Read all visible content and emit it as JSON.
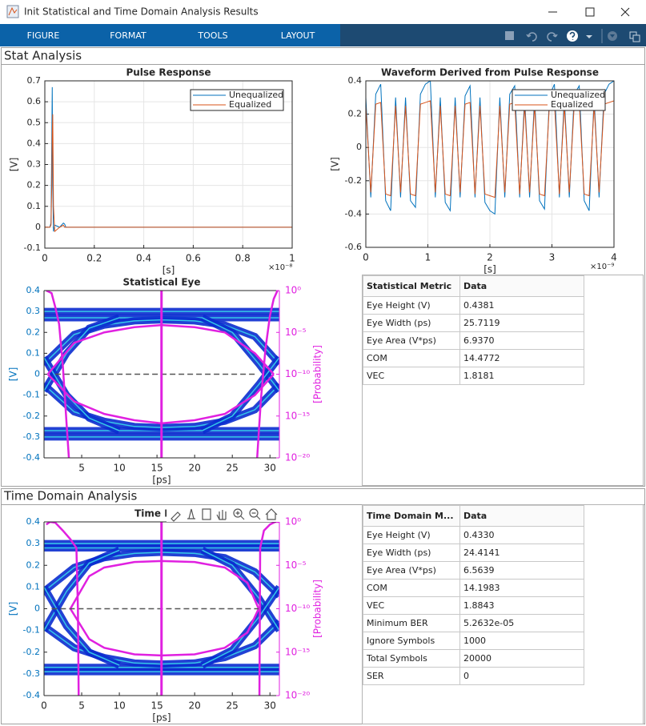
{
  "window": {
    "title": "Init Statistical and Time Domain Analysis Results"
  },
  "toolbar": {
    "menu": [
      "FIGURE",
      "FORMAT",
      "TOOLS",
      "LAYOUT"
    ]
  },
  "stat_panel": {
    "title": "Stat Analysis",
    "table": {
      "header": [
        "Statistical Metric",
        "Data"
      ],
      "rows": [
        [
          "Eye Height (V)",
          "0.4381"
        ],
        [
          "Eye Width (ps)",
          "25.7119"
        ],
        [
          "Eye Area (V*ps)",
          "6.9370"
        ],
        [
          "COM",
          "14.4772"
        ],
        [
          "VEC",
          "1.8181"
        ]
      ]
    }
  },
  "time_panel": {
    "title": "Time Domain Analysis",
    "table": {
      "header": [
        "Time Domain M...",
        "Data"
      ],
      "rows": [
        [
          "Eye Height (V)",
          "0.4330"
        ],
        [
          "Eye Width (ps)",
          "24.4141"
        ],
        [
          "Eye Area (V*ps)",
          "6.5639"
        ],
        [
          "COM",
          "14.1983"
        ],
        [
          "VEC",
          "1.8843"
        ],
        [
          "Minimum BER",
          "5.2632e-05"
        ],
        [
          "Ignore Symbols",
          "1000"
        ],
        [
          "Total Symbols",
          "20000"
        ],
        [
          "SER",
          "0"
        ]
      ]
    }
  },
  "chart_data": [
    {
      "type": "line",
      "title": "Pulse Response",
      "xlabel": "[s]",
      "ylabel": "[V]",
      "x_multiplier": "×10⁻⁸",
      "xlim": [
        0,
        1
      ],
      "xticks": [
        0,
        0.2,
        0.4,
        0.6,
        0.8,
        1
      ],
      "ylim": [
        -0.1,
        0.7
      ],
      "yticks": [
        -0.1,
        0,
        0.1,
        0.2,
        0.3,
        0.4,
        0.5,
        0.6,
        0.7
      ],
      "grid": true,
      "legend": "upper right",
      "x": [
        0,
        0.02,
        0.025,
        0.028,
        0.03,
        0.032,
        0.035,
        0.04,
        0.06,
        0.075,
        0.08,
        0.085,
        0.1,
        1
      ],
      "series": [
        {
          "name": "Unequalized",
          "color": "#0072bd",
          "values": [
            0,
            0,
            0.02,
            0.4,
            0.67,
            0.2,
            -0.02,
            0.01,
            0,
            0.02,
            0.015,
            0,
            0,
            0
          ]
        },
        {
          "name": "Equalized",
          "color": "#d95319",
          "values": [
            0,
            0,
            0.01,
            0.2,
            0.45,
            0.54,
            0.1,
            -0.02,
            0,
            0.01,
            0,
            0,
            0,
            0
          ]
        }
      ]
    },
    {
      "type": "line",
      "title": "Waveform Derived from Pulse Response",
      "xlabel": "[s]",
      "ylabel": "[V]",
      "x_multiplier": "×10⁻⁹",
      "xlim": [
        0,
        4
      ],
      "xticks": [
        0,
        1,
        2,
        3,
        4
      ],
      "ylim": [
        -0.6,
        0.4
      ],
      "yticks": [
        -0.6,
        -0.4,
        -0.2,
        0,
        0.2,
        0.4
      ],
      "grid": true,
      "legend": "upper right",
      "x": [
        0,
        0.08,
        0.16,
        0.24,
        0.32,
        0.4,
        0.48,
        0.56,
        0.64,
        0.72,
        0.8,
        0.88,
        0.96,
        1.04,
        1.12,
        1.2,
        1.28,
        1.36,
        1.44,
        1.52,
        1.6,
        1.68,
        1.76,
        1.84,
        1.92,
        2,
        2.08,
        2.16,
        2.24,
        2.32,
        2.4,
        2.48,
        2.56,
        2.64,
        2.72,
        2.8,
        2.88,
        2.96,
        3.04,
        3.12,
        3.2,
        3.28,
        3.36,
        3.44,
        3.52,
        3.6,
        3.68,
        3.76,
        3.84,
        3.92,
        4
      ],
      "series": [
        {
          "name": "Unequalized",
          "color": "#0072bd",
          "values": [
            0.3,
            -0.3,
            0.32,
            0.38,
            -0.32,
            -0.38,
            0.3,
            -0.3,
            0.3,
            -0.32,
            -0.36,
            0.32,
            0.38,
            0.4,
            -0.3,
            0.3,
            -0.33,
            -0.38,
            0.3,
            -0.3,
            0.31,
            0.37,
            -0.3,
            0.3,
            -0.33,
            -0.38,
            -0.4,
            0.3,
            -0.3,
            0.32,
            0.37,
            -0.3,
            0.3,
            -0.3,
            0.3,
            -0.32,
            -0.37,
            0.31,
            0.38,
            -0.3,
            0.3,
            -0.3,
            0.32,
            0.37,
            -0.32,
            -0.38,
            0.3,
            -0.3,
            0.32,
            0.38,
            0.4
          ]
        },
        {
          "name": "Equalized",
          "color": "#d95319",
          "values": [
            0.25,
            -0.27,
            0.26,
            0.27,
            -0.28,
            -0.29,
            0.25,
            -0.27,
            0.25,
            -0.28,
            -0.29,
            0.26,
            0.27,
            0.28,
            -0.27,
            0.25,
            -0.28,
            -0.29,
            0.25,
            -0.27,
            0.26,
            0.27,
            -0.28,
            0.25,
            -0.28,
            -0.29,
            -0.3,
            0.25,
            -0.27,
            0.26,
            0.27,
            -0.28,
            0.25,
            -0.27,
            0.25,
            -0.28,
            -0.29,
            0.26,
            0.27,
            -0.28,
            0.25,
            -0.27,
            0.26,
            0.27,
            -0.28,
            -0.29,
            0.25,
            -0.27,
            0.26,
            0.27,
            0.28
          ]
        }
      ]
    },
    {
      "type": "eye",
      "title": "Statistical Eye",
      "xlabel": "[ps]",
      "ylabel": "[V]",
      "y2label": "[Probability]",
      "xlim": [
        0,
        31.25
      ],
      "xticks": [
        5,
        10,
        15,
        20,
        25,
        30
      ],
      "ylim": [
        -0.4,
        0.4
      ],
      "yticks": [
        -0.4,
        -0.3,
        -0.2,
        -0.1,
        0,
        0.1,
        0.2,
        0.3,
        0.4
      ],
      "y2scale": "log",
      "y2lim": [
        1e-20,
        1
      ],
      "y2ticks": [
        {
          "value": 1e-20,
          "label": "10⁻²⁰"
        },
        {
          "value": 1e-15,
          "label": "10⁻¹⁵"
        },
        {
          "value": 1e-10,
          "label": "10⁻¹⁰"
        },
        {
          "value": 1e-05,
          "label": "10⁻⁵"
        },
        {
          "value": 1,
          "label": "10⁰"
        }
      ],
      "density_color": "#0a2ccf",
      "density": [
        {
          "x": [
            0,
            31.25
          ],
          "values": [
            0.3,
            0.3
          ]
        },
        {
          "x": [
            0,
            31.25
          ],
          "values": [
            0.27,
            0.27
          ]
        },
        {
          "x": [
            0,
            31.25
          ],
          "values": [
            -0.27,
            -0.27
          ]
        },
        {
          "x": [
            0,
            31.25
          ],
          "values": [
            -0.3,
            -0.3
          ]
        },
        {
          "x": [
            0,
            4,
            8,
            12,
            15.6,
            20,
            24,
            28,
            31.25
          ],
          "values": [
            0.05,
            0.19,
            0.235,
            0.255,
            0.26,
            0.255,
            0.235,
            0.18,
            0.05
          ]
        },
        {
          "x": [
            0,
            4,
            8,
            12,
            15.6,
            20,
            24,
            28,
            31.25
          ],
          "values": [
            -0.05,
            -0.18,
            -0.225,
            -0.25,
            -0.255,
            -0.25,
            -0.225,
            -0.17,
            -0.05
          ]
        },
        {
          "x": [
            0,
            3,
            6,
            10
          ],
          "values": [
            -0.08,
            0.1,
            0.22,
            0.27
          ]
        },
        {
          "x": [
            0,
            3,
            6,
            10
          ],
          "values": [
            0.08,
            -0.1,
            -0.21,
            -0.27
          ]
        },
        {
          "x": [
            21,
            25,
            28.5,
            31.25
          ],
          "values": [
            0.27,
            0.2,
            0.05,
            -0.08
          ]
        },
        {
          "x": [
            21,
            25,
            28.5,
            31.25
          ],
          "values": [
            -0.27,
            -0.2,
            -0.05,
            0.08
          ]
        }
      ],
      "contour_color": "#e020e0",
      "contour": {
        "x": [
          0.5,
          4,
          8,
          12,
          15.6,
          20,
          24,
          28,
          30.5
        ],
        "upper": [
          0,
          0.15,
          0.2,
          0.225,
          0.235,
          0.225,
          0.2,
          0.1,
          0
        ],
        "lower": [
          0,
          -0.13,
          -0.19,
          -0.22,
          -0.235,
          -0.22,
          -0.19,
          -0.1,
          0
        ]
      },
      "sample_x": 15.6,
      "threshold": 0,
      "threshold_x": [
        1.5,
        28
      ],
      "probability": [
        {
          "x": [
            0.3,
            1,
            1.5,
            2,
            2.5,
            3,
            3.3
          ],
          "values": [
            1,
            0.5,
            0.01,
            0.0001,
            1e-09,
            1e-16,
            1e-20
          ]
        },
        {
          "x": [
            28.3,
            28.8,
            29.4,
            30,
            30.5,
            31
          ],
          "values": [
            1e-20,
            1e-13,
            1e-07,
            0.001,
            0.1,
            1
          ]
        }
      ]
    },
    {
      "type": "eye",
      "title": "Time Dom",
      "xlabel": "[ps]",
      "ylabel": "[V]",
      "y2label": "[Probability]",
      "xlim": [
        0,
        31.25
      ],
      "xticks": [
        0,
        5,
        10,
        15,
        20,
        25,
        30
      ],
      "ylim": [
        -0.4,
        0.4
      ],
      "yticks": [
        -0.4,
        -0.3,
        -0.2,
        -0.1,
        0,
        0.1,
        0.2,
        0.3,
        0.4
      ],
      "y2scale": "log",
      "y2lim": [
        1e-20,
        1
      ],
      "y2ticks": [
        {
          "value": 1e-20,
          "label": "10⁻²⁰"
        },
        {
          "value": 1e-15,
          "label": "10⁻¹⁵"
        },
        {
          "value": 1e-10,
          "label": "10⁻¹⁰"
        },
        {
          "value": 1e-05,
          "label": "10⁻⁵"
        },
        {
          "value": 1,
          "label": "10⁰"
        }
      ],
      "density_color": "#0a2ccf",
      "density": [
        {
          "x": [
            0,
            31.25
          ],
          "values": [
            0.3,
            0.3
          ]
        },
        {
          "x": [
            0,
            31.25
          ],
          "values": [
            0.28,
            0.28
          ]
        },
        {
          "x": [
            0,
            31.25
          ],
          "values": [
            -0.27,
            -0.27
          ]
        },
        {
          "x": [
            0,
            31.25
          ],
          "values": [
            -0.29,
            -0.29
          ]
        },
        {
          "x": [
            0,
            4,
            8,
            12,
            15.6,
            20,
            24,
            28,
            31.25
          ],
          "values": [
            0.08,
            0.19,
            0.235,
            0.255,
            0.26,
            0.255,
            0.235,
            0.17,
            0.06
          ]
        },
        {
          "x": [
            0,
            4,
            8,
            12,
            15.6,
            20,
            24,
            28,
            31.25
          ],
          "values": [
            -0.08,
            -0.18,
            -0.225,
            -0.25,
            -0.255,
            -0.25,
            -0.225,
            -0.17,
            -0.06
          ]
        },
        {
          "x": [
            0,
            3,
            6,
            10
          ],
          "values": [
            -0.1,
            0.08,
            0.21,
            0.27
          ]
        },
        {
          "x": [
            0,
            3,
            6,
            10
          ],
          "values": [
            0.1,
            -0.08,
            -0.2,
            -0.26
          ]
        },
        {
          "x": [
            21,
            25,
            28.5,
            31.25
          ],
          "values": [
            0.27,
            0.2,
            0.05,
            -0.1
          ]
        },
        {
          "x": [
            21,
            25,
            28.5,
            31.25
          ],
          "values": [
            -0.26,
            -0.19,
            -0.04,
            0.1
          ]
        }
      ],
      "contour_color": "#e020e0",
      "contour": {
        "x": [
          3.5,
          6,
          8,
          12,
          15.6,
          20,
          24,
          27,
          28.5
        ],
        "upper": [
          0,
          0.15,
          0.19,
          0.215,
          0.22,
          0.215,
          0.19,
          0.12,
          0
        ],
        "lower": [
          0,
          -0.14,
          -0.18,
          -0.21,
          -0.215,
          -0.21,
          -0.18,
          -0.11,
          0
        ]
      },
      "sample_x": 15.6,
      "threshold": 0,
      "threshold_x": [
        1,
        28.5
      ],
      "probability": [
        {
          "x": [
            0.3,
            0.8,
            1.5,
            2.5,
            3.5,
            4.3,
            4.5,
            4.6
          ],
          "values": [
            0.5,
            1,
            0.8,
            0.1,
            0.01,
            0.001,
            1e-10,
            1e-20
          ]
        },
        {
          "x": [
            28.6,
            28.7,
            29.2,
            30,
            30.7,
            31.2
          ],
          "values": [
            1e-20,
            0.001,
            0.1,
            0.5,
            1,
            1
          ]
        }
      ]
    }
  ]
}
